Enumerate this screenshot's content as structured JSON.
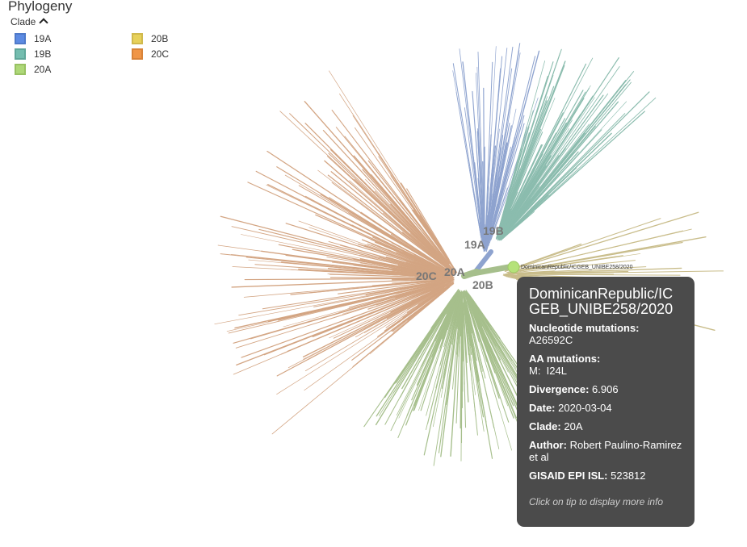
{
  "panel": {
    "title": "Phylogeny",
    "color_by_label": "Clade"
  },
  "legend": [
    {
      "label": "19A",
      "color": "#4c7fe0"
    },
    {
      "label": "19B",
      "color": "#65b6a7"
    },
    {
      "label": "20A",
      "color": "#a6d46a"
    },
    {
      "label": "20B",
      "color": "#e5cd48"
    },
    {
      "label": "20C",
      "color": "#ef8a33"
    }
  ],
  "branch_colors": {
    "19A": "#8ea3cf",
    "19B": "#8bbcae",
    "20A": "#a6bf8c",
    "20B": "#c9bd8b",
    "20C": "#d3a583"
  },
  "clade_labels": {
    "c19A": "19A",
    "c19B": "19B",
    "c20A": "20A",
    "c20B": "20B",
    "c20C": "20C"
  },
  "selected_tip": {
    "label": "DominicanRepublic/ICGEB_UNIBE258/2020",
    "color": "#b5e27a"
  },
  "tooltip": {
    "name": "DominicanRepublic/ICGEB_UNIBE258/2020",
    "nuc_label": "Nucleotide mutations:",
    "nuc_value": "A26592C",
    "aa_label": "AA mutations:",
    "aa_value": "M:  I24L",
    "div_label": "Divergence:",
    "div_value": "6.906",
    "date_label": "Date:",
    "date_value": "2020-03-04",
    "clade_label": "Clade:",
    "clade_value": "20A",
    "author_label": "Author:",
    "author_value": "Robert Paulino-Ramirez et al",
    "gisaid_label": "GISAID EPI ISL:",
    "gisaid_value": "523812",
    "footer": "Click on tip to display more info"
  }
}
